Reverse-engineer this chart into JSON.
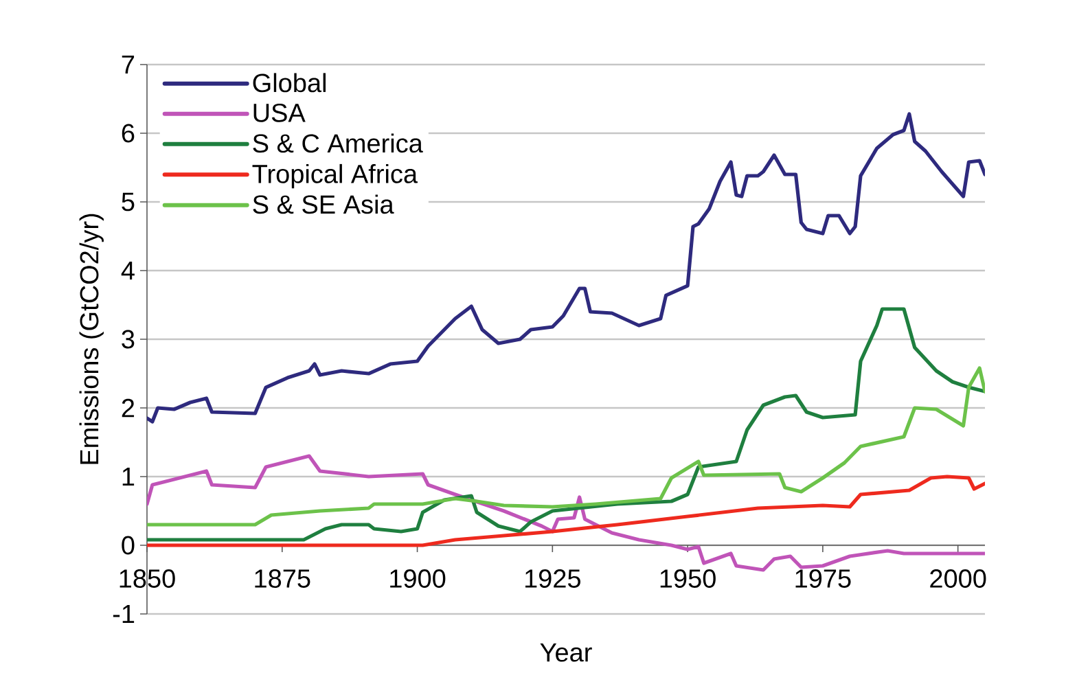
{
  "chart_data": {
    "type": "line",
    "xlabel": "Year",
    "ylabel": "Emissions (GtCO2/yr)",
    "xlim": [
      1850,
      2005
    ],
    "xticks": [
      1850,
      1875,
      1900,
      1925,
      1950,
      1975,
      2000
    ],
    "ylim": [
      -1,
      7
    ],
    "yticks": [
      -1,
      0,
      1,
      2,
      3,
      4,
      5,
      6,
      7
    ],
    "grid": "y",
    "legend": "top left",
    "line_style": "solid",
    "marker": "none",
    "series": [
      {
        "name": "Global",
        "color": "#2e2a7e",
        "x": [
          1850,
          1851,
          1852,
          1855,
          1858,
          1861,
          1862,
          1870,
          1872,
          1876,
          1880,
          1881,
          1882,
          1886,
          1891,
          1895,
          1900,
          1902,
          1905,
          1907,
          1910,
          1912,
          1915,
          1919,
          1921,
          1925,
          1927,
          1930,
          1931,
          1932,
          1936,
          1941,
          1945,
          1946,
          1950,
          1951,
          1952,
          1954,
          1956,
          1958,
          1959,
          1960,
          1961,
          1963,
          1964,
          1966,
          1968,
          1970,
          1971,
          1972,
          1975,
          1976,
          1978,
          1980,
          1981,
          1982,
          1985,
          1988,
          1990,
          1991,
          1992,
          1994,
          1997,
          2001,
          2002,
          2004,
          2005
        ],
        "values": [
          1.85,
          1.8,
          2.0,
          1.98,
          2.08,
          2.14,
          1.94,
          1.92,
          2.3,
          2.44,
          2.54,
          2.64,
          2.48,
          2.54,
          2.5,
          2.64,
          2.68,
          2.9,
          3.14,
          3.3,
          3.48,
          3.14,
          2.94,
          3.0,
          3.14,
          3.18,
          3.34,
          3.74,
          3.74,
          3.4,
          3.38,
          3.2,
          3.3,
          3.64,
          3.78,
          4.64,
          4.68,
          4.9,
          5.3,
          5.58,
          5.1,
          5.08,
          5.38,
          5.38,
          5.44,
          5.68,
          5.4,
          5.4,
          4.7,
          4.6,
          4.54,
          4.8,
          4.8,
          4.54,
          4.64,
          5.38,
          5.78,
          5.98,
          6.04,
          6.28,
          5.88,
          5.74,
          5.44,
          5.08,
          5.58,
          5.6,
          5.4
        ]
      },
      {
        "name": "USA",
        "color": "#c054b8",
        "x": [
          1850,
          1851,
          1857,
          1861,
          1862,
          1870,
          1872,
          1880,
          1882,
          1891,
          1901,
          1902,
          1907,
          1916,
          1923,
          1925,
          1926,
          1929,
          1930,
          1931,
          1936,
          1941,
          1947,
          1950,
          1952,
          1953,
          1958,
          1959,
          1964,
          1966,
          1969,
          1971,
          1975,
          1980,
          1987,
          1990,
          2005
        ],
        "values": [
          0.6,
          0.88,
          1.0,
          1.08,
          0.88,
          0.84,
          1.14,
          1.3,
          1.08,
          1.0,
          1.04,
          0.88,
          0.74,
          0.5,
          0.28,
          0.2,
          0.38,
          0.4,
          0.7,
          0.38,
          0.18,
          0.08,
          0.0,
          -0.06,
          -0.02,
          -0.26,
          -0.12,
          -0.3,
          -0.36,
          -0.2,
          -0.16,
          -0.32,
          -0.3,
          -0.16,
          -0.08,
          -0.12,
          -0.12
        ]
      },
      {
        "name": "S & C America",
        "color": "#1f7f3f",
        "x": [
          1850,
          1879,
          1883,
          1886,
          1891,
          1892,
          1897,
          1900,
          1901,
          1905,
          1910,
          1911,
          1915,
          1919,
          1921,
          1925,
          1937,
          1947,
          1950,
          1952,
          1959,
          1961,
          1964,
          1968,
          1970,
          1972,
          1975,
          1981,
          1982,
          1985,
          1986,
          1990,
          1992,
          1996,
          1999,
          2002,
          2005
        ],
        "values": [
          0.08,
          0.08,
          0.24,
          0.3,
          0.3,
          0.24,
          0.2,
          0.24,
          0.48,
          0.66,
          0.72,
          0.48,
          0.28,
          0.2,
          0.34,
          0.5,
          0.6,
          0.64,
          0.74,
          1.14,
          1.22,
          1.68,
          2.04,
          2.16,
          2.18,
          1.94,
          1.86,
          1.9,
          2.68,
          3.2,
          3.44,
          3.44,
          2.88,
          2.54,
          2.38,
          2.3,
          2.24
        ]
      },
      {
        "name": "Tropical Africa",
        "color": "#ee2a1e",
        "x": [
          1850,
          1901,
          1907,
          1916,
          1925,
          1937,
          1950,
          1963,
          1975,
          1980,
          1982,
          1991,
          1995,
          1998,
          2002,
          2003,
          2005
        ],
        "values": [
          0.0,
          0.0,
          0.08,
          0.14,
          0.2,
          0.3,
          0.42,
          0.54,
          0.58,
          0.56,
          0.74,
          0.8,
          0.98,
          1.0,
          0.98,
          0.82,
          0.9
        ]
      },
      {
        "name": "S & SE Asia",
        "color": "#6cc24a",
        "x": [
          1850,
          1870,
          1873,
          1882,
          1891,
          1892,
          1901,
          1907,
          1911,
          1916,
          1925,
          1933,
          1945,
          1947,
          1952,
          1953,
          1967,
          1968,
          1971,
          1975,
          1979,
          1982,
          1990,
          1992,
          1996,
          2001,
          2002,
          2004,
          2005
        ],
        "values": [
          0.3,
          0.3,
          0.44,
          0.5,
          0.54,
          0.6,
          0.6,
          0.68,
          0.64,
          0.58,
          0.56,
          0.6,
          0.68,
          0.98,
          1.22,
          1.02,
          1.04,
          0.84,
          0.78,
          0.98,
          1.2,
          1.44,
          1.58,
          2.0,
          1.98,
          1.74,
          2.3,
          2.58,
          2.24
        ]
      }
    ]
  }
}
